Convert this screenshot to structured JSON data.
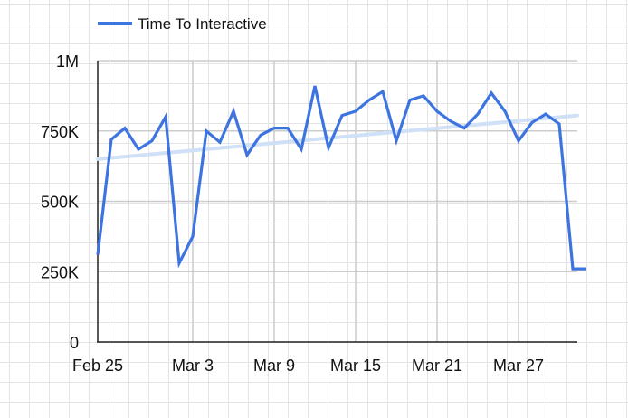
{
  "chart_data": {
    "type": "line",
    "title": "",
    "xlabel": "",
    "ylabel": "",
    "x": [
      "Feb 25",
      "Feb 26",
      "Feb 27",
      "Feb 28",
      "Feb 29",
      "Mar 1",
      "Mar 2",
      "Mar 3",
      "Mar 4",
      "Mar 5",
      "Mar 6",
      "Mar 7",
      "Mar 8",
      "Mar 9",
      "Mar 10",
      "Mar 11",
      "Mar 12",
      "Mar 13",
      "Mar 14",
      "Mar 15",
      "Mar 16",
      "Mar 17",
      "Mar 18",
      "Mar 19",
      "Mar 20",
      "Mar 21",
      "Mar 22",
      "Mar 23",
      "Mar 24",
      "Mar 25",
      "Mar 26",
      "Mar 27",
      "Mar 28",
      "Mar 29",
      "Mar 30",
      "Mar 31",
      "Apr 1"
    ],
    "x_ticks": [
      "Feb 25",
      "Mar 3",
      "Mar 9",
      "Mar 15",
      "Mar 21",
      "Mar 27"
    ],
    "y_ticks": [
      "0",
      "250K",
      "500K",
      "750K",
      "1M"
    ],
    "ylim": [
      0,
      1000000
    ],
    "grid": true,
    "legend_position": "top-left",
    "series": [
      {
        "name": "Time To Interactive",
        "color": "#3d74e0",
        "values": [
          310000,
          720000,
          760000,
          685000,
          715000,
          800000,
          280000,
          375000,
          750000,
          710000,
          820000,
          665000,
          735000,
          760000,
          760000,
          685000,
          910000,
          690000,
          805000,
          820000,
          860000,
          890000,
          715000,
          860000,
          875000,
          820000,
          785000,
          760000,
          810000,
          885000,
          820000,
          715000,
          780000,
          810000,
          775000,
          260000,
          260000
        ]
      }
    ],
    "trendline": {
      "color": "#cfe0f7",
      "start": 650000,
      "end": 805000
    }
  }
}
